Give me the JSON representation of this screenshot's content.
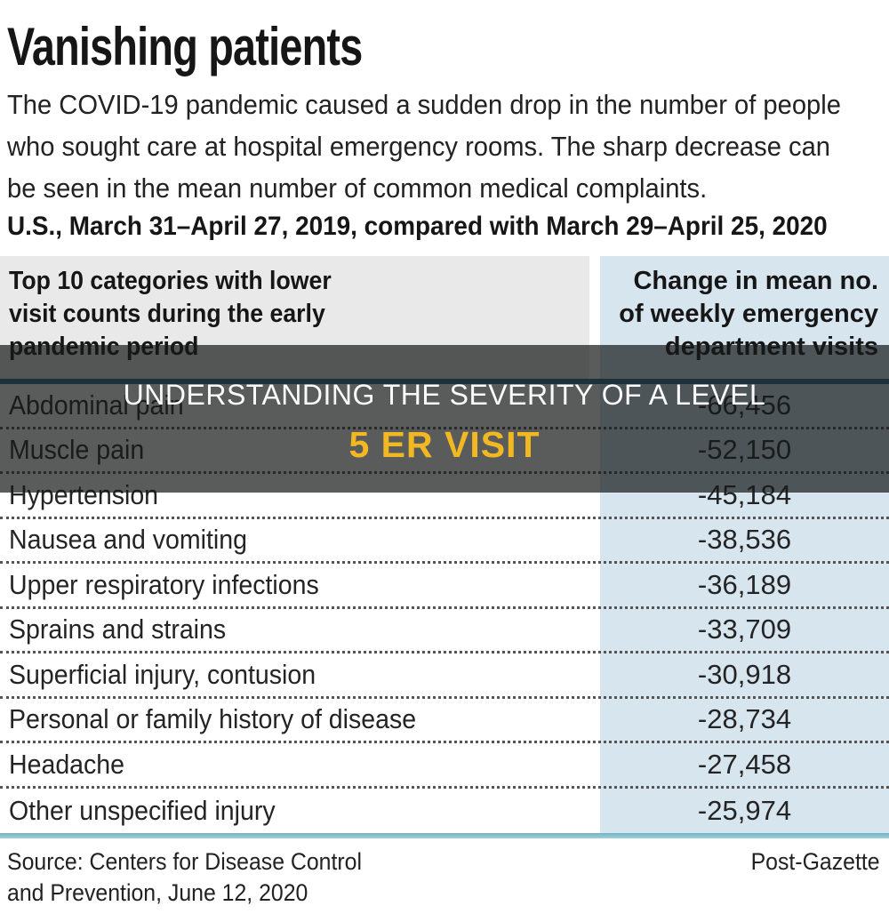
{
  "title": "Vanishing patients",
  "intro_lines": [
    "The COVID-19 pandemic caused a sudden drop in the number of people",
    "who sought care at hospital emergency rooms. The sharp decrease can",
    "be seen in the mean number of common medical complaints."
  ],
  "subtitle": "U.S., March 31–April 27, 2019, compared with March 29–April 25, 2020",
  "table": {
    "col1_header_lines": [
      "Top 10 categories with lower",
      "visit counts during the early",
      "pandemic period"
    ],
    "col2_header_lines": [
      "Change in mean no.",
      "of weekly emergency",
      "department visits"
    ],
    "rows": [
      {
        "category": "Abdominal pain",
        "change": "-66,456"
      },
      {
        "category": "Muscle pain",
        "change": "-52,150"
      },
      {
        "category": "Hypertension",
        "change": "-45,184"
      },
      {
        "category": "Nausea and vomiting",
        "change": "-38,536"
      },
      {
        "category": "Upper respiratory infections",
        "change": "-36,189"
      },
      {
        "category": "Sprains and strains",
        "change": "-33,709"
      },
      {
        "category": "Superficial injury, contusion",
        "change": "-30,918"
      },
      {
        "category": "Personal or family history of disease",
        "change": "-28,734"
      },
      {
        "category": "Headache",
        "change": "-27,458"
      },
      {
        "category": "Other unspecified injury",
        "change": "-25,974"
      }
    ]
  },
  "overlay": {
    "line1": "UNDERSTANDING THE SEVERITY OF A LEVEL",
    "line2": "5 ER VISIT"
  },
  "footer": {
    "source_lines": [
      "Source: Centers for Disease Control",
      "and Prevention, June 12, 2020"
    ],
    "credit": "Post-Gazette"
  },
  "colors": {
    "header_cell_gray": "#e9e9e9",
    "value_column_blue": "#d7e5ef",
    "top_rule_teal": "#2e7084",
    "bottom_rule_teal": "#8fc5d2",
    "overlay_scrim": "rgba(23,25,26,0.71)",
    "overlay_accent_gold": "#f2b822",
    "text_dark": "#1f1f1f"
  },
  "chart_data": {
    "type": "table",
    "title": "Vanishing patients",
    "subtitle": "U.S., March 31–April 27, 2019, compared with March 29–April 25, 2020",
    "column_headers": [
      "Top 10 categories with lower visit counts during the early pandemic period",
      "Change in mean no. of weekly emergency department visits"
    ],
    "categories": [
      "Abdominal pain",
      "Muscle pain",
      "Hypertension",
      "Nausea and vomiting",
      "Upper respiratory infections",
      "Sprains and strains",
      "Superficial injury, contusion",
      "Personal or family history of disease",
      "Headache",
      "Other unspecified injury"
    ],
    "values": [
      -66456,
      -52150,
      -45184,
      -38536,
      -36189,
      -33709,
      -30918,
      -28734,
      -27458,
      -25974
    ],
    "source": "Centers for Disease Control and Prevention, June 12, 2020",
    "credit": "Post-Gazette"
  }
}
